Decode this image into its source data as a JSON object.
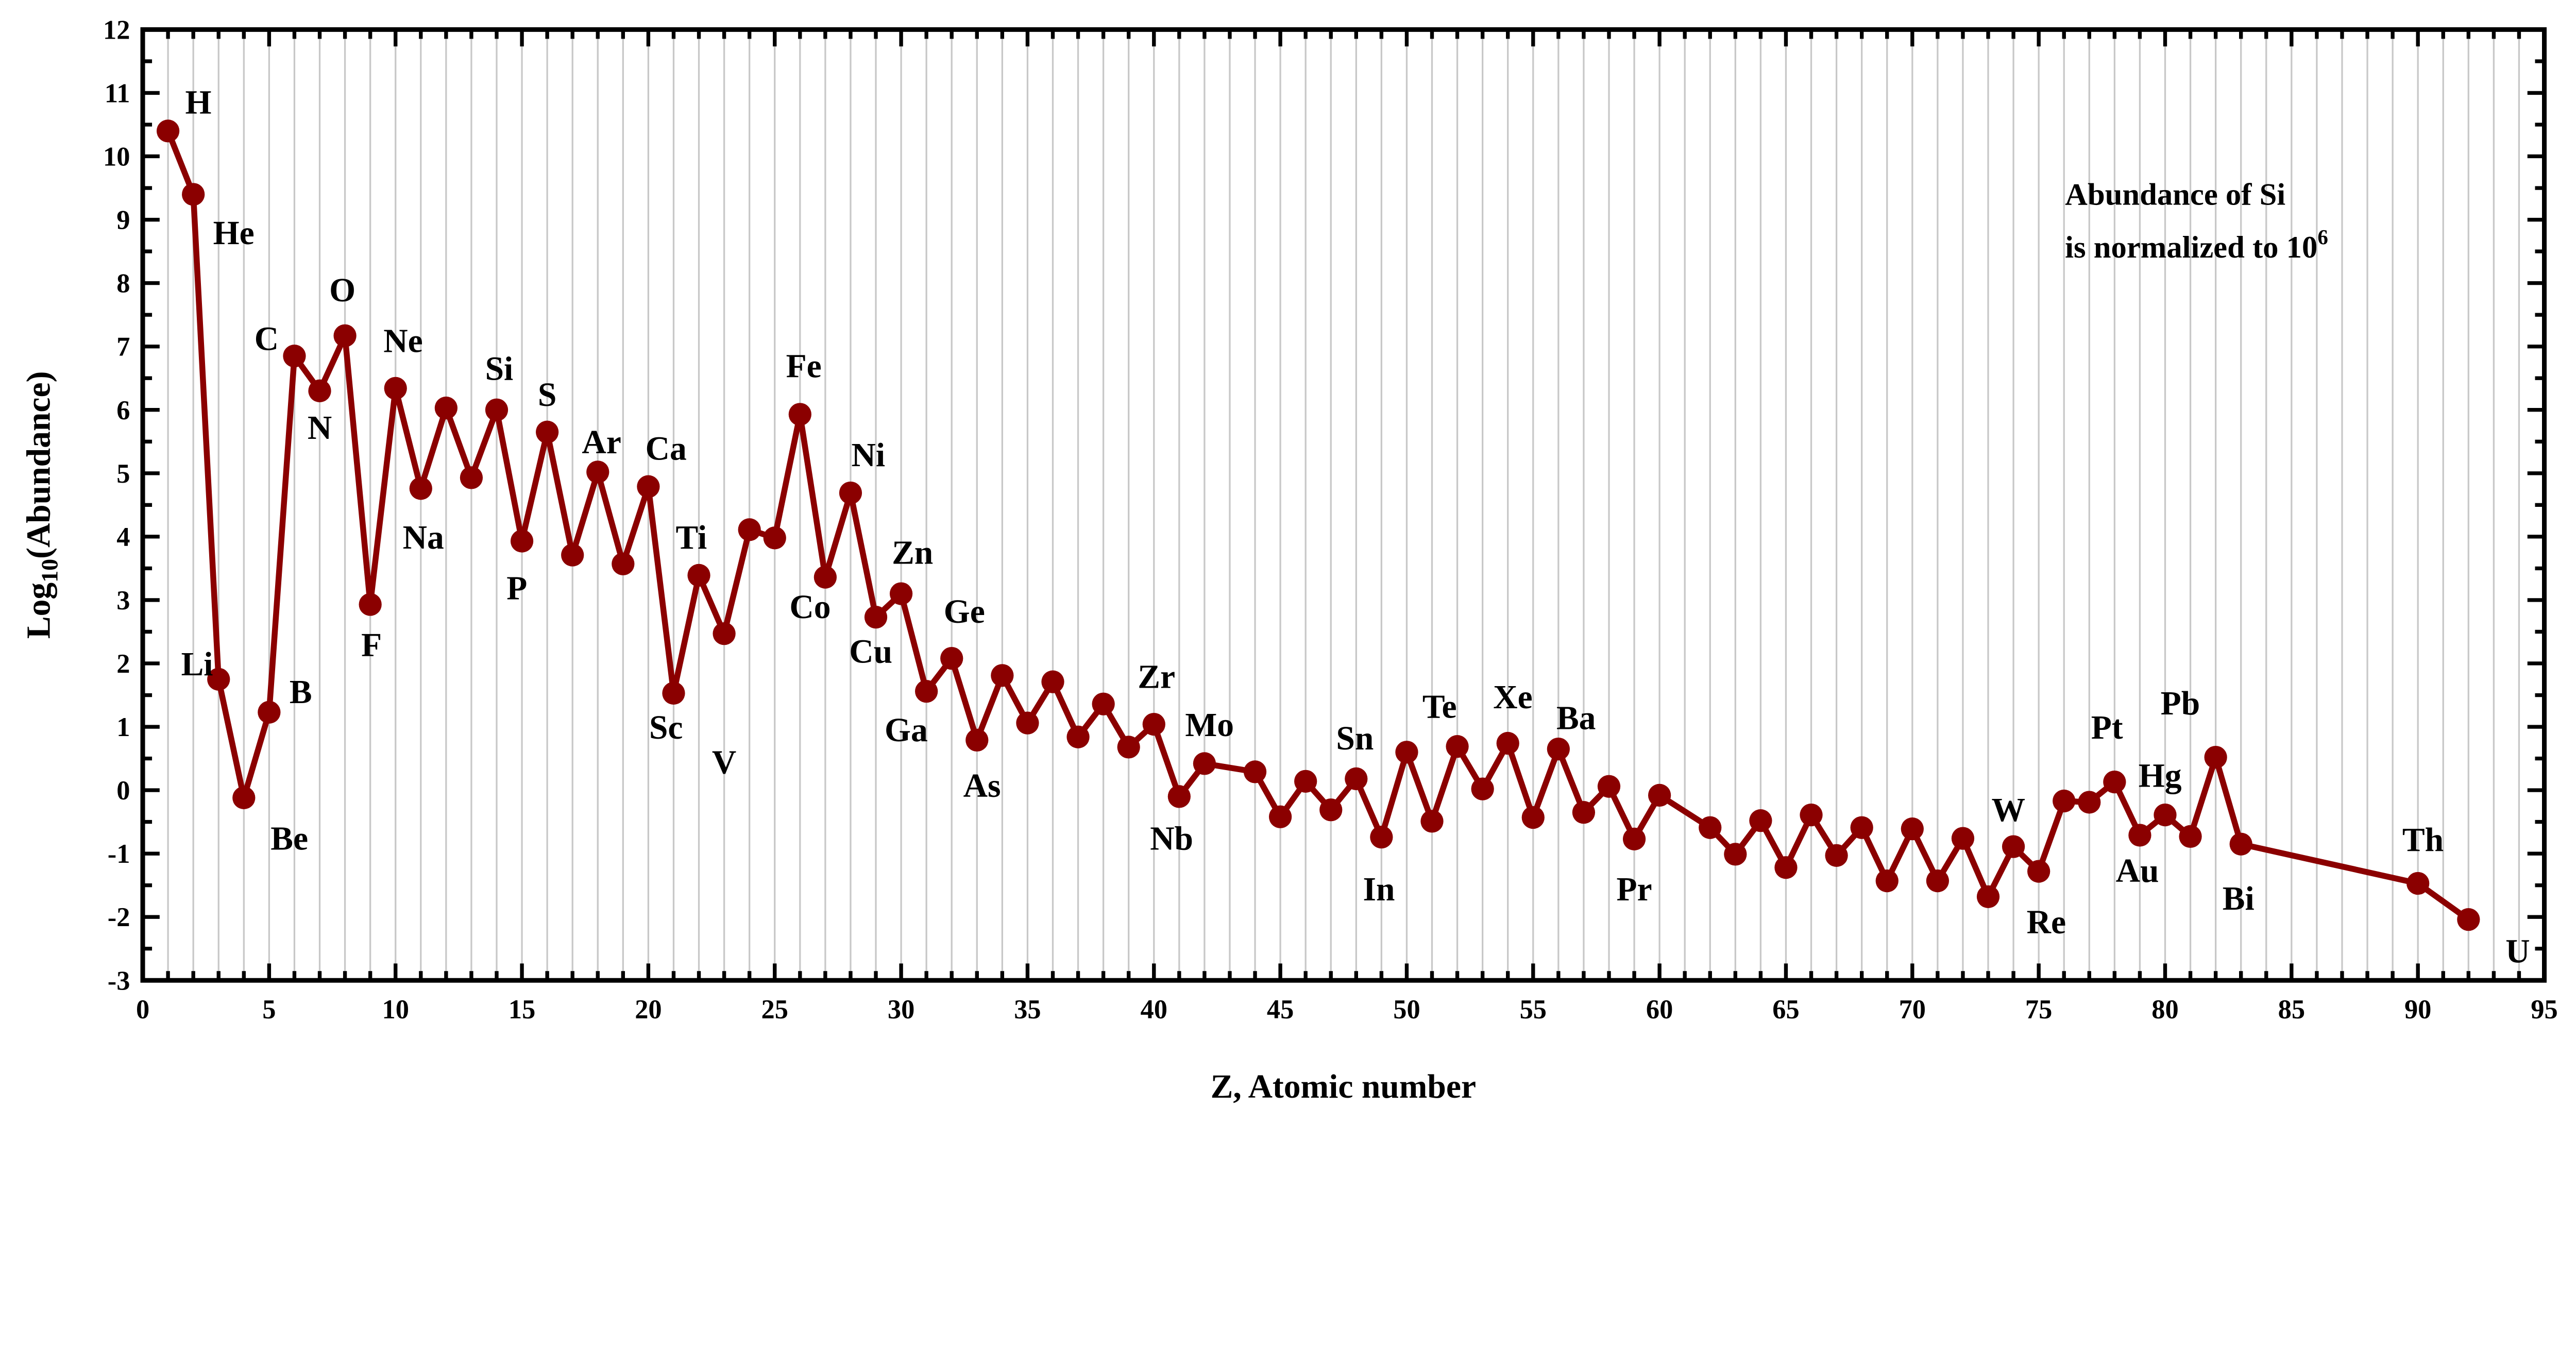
{
  "chart_data": {
    "type": "line",
    "title": "",
    "xlabel": "Z, Atomic number",
    "ylabel": {
      "main": "Log",
      "sub": "10",
      "rest": "(Abundance)"
    },
    "xlim": [
      0,
      95
    ],
    "ylim": [
      -3,
      12
    ],
    "xticks": [
      "0",
      "5",
      "10",
      "15",
      "20",
      "25",
      "30",
      "35",
      "40",
      "45",
      "50",
      "55",
      "60",
      "65",
      "70",
      "75",
      "80",
      "85",
      "90",
      "95"
    ],
    "yticks": [
      "-3",
      "-2",
      "-1",
      "0",
      "1",
      "2",
      "3",
      "4",
      "5",
      "6",
      "7",
      "8",
      "9",
      "10",
      "11",
      "12"
    ],
    "grid": "vertical lines at every integer Z",
    "line_color": "#8b0000",
    "annotation": {
      "line1": "Abundance of Si",
      "line2": "is normalized to 10",
      "sup": "6",
      "placement": "top-right"
    },
    "series": [
      {
        "name": "Abundance",
        "x": [
          1,
          2,
          3,
          4,
          5,
          6,
          7,
          8,
          9,
          10,
          11,
          12,
          13,
          14,
          15,
          16,
          17,
          18,
          19,
          20,
          21,
          22,
          23,
          24,
          25,
          26,
          27,
          28,
          29,
          30,
          31,
          32,
          33,
          34,
          35,
          36,
          37,
          38,
          39,
          40,
          41,
          42,
          44,
          45,
          46,
          47,
          48,
          49,
          50,
          51,
          52,
          53,
          54,
          55,
          56,
          57,
          58,
          59,
          60,
          62,
          63,
          64,
          65,
          66,
          67,
          68,
          69,
          70,
          71,
          72,
          73,
          74,
          75,
          76,
          77,
          78,
          79,
          80,
          81,
          82,
          83,
          90,
          92
        ],
        "y": [
          10.4,
          9.4,
          1.75,
          -0.12,
          1.23,
          6.85,
          6.3,
          7.17,
          2.93,
          6.34,
          4.76,
          6.03,
          4.93,
          6.0,
          3.93,
          5.65,
          3.71,
          5.02,
          3.57,
          4.79,
          1.53,
          3.39,
          2.47,
          4.11,
          3.98,
          5.93,
          3.36,
          4.69,
          2.73,
          3.1,
          1.56,
          2.08,
          0.79,
          1.81,
          1.06,
          1.71,
          0.84,
          1.36,
          0.68,
          1.04,
          -0.1,
          0.42,
          0.29,
          -0.42,
          0.14,
          -0.31,
          0.18,
          -0.74,
          0.6,
          -0.49,
          0.69,
          0.02,
          0.74,
          -0.43,
          0.65,
          -0.35,
          0.06,
          -0.77,
          -0.08,
          -0.59,
          -1.01,
          -0.48,
          -1.22,
          -0.39,
          -1.03,
          -0.59,
          -1.43,
          -0.61,
          -1.43,
          -0.76,
          -1.68,
          -0.89,
          -1.28,
          -0.17,
          -0.19,
          0.13,
          -0.71,
          -0.39,
          -0.73,
          0.52,
          -0.85,
          -1.47,
          -2.04
        ]
      }
    ],
    "point_labels": [
      {
        "text": "H",
        "x": 2.2,
        "y": 10.86
      },
      {
        "text": "He",
        "x": 3.6,
        "y": 8.8
      },
      {
        "text": "Li",
        "x": 2.15,
        "y": 2.0
      },
      {
        "text": "Be",
        "x": 5.8,
        "y": -0.75
      },
      {
        "text": "B",
        "x": 6.25,
        "y": 1.56
      },
      {
        "text": "C",
        "x": 4.9,
        "y": 7.13
      },
      {
        "text": "N",
        "x": 7.0,
        "y": 5.73
      },
      {
        "text": "O",
        "x": 7.9,
        "y": 7.9
      },
      {
        "text": "Ne",
        "x": 10.3,
        "y": 7.1
      },
      {
        "text": "Na",
        "x": 11.1,
        "y": 4.0
      },
      {
        "text": "F",
        "x": 9.05,
        "y": 2.3
      },
      {
        "text": "Si",
        "x": 14.1,
        "y": 6.66
      },
      {
        "text": "S",
        "x": 16.0,
        "y": 6.25
      },
      {
        "text": "P",
        "x": 14.8,
        "y": 3.2
      },
      {
        "text": "Ar",
        "x": 18.15,
        "y": 5.5
      },
      {
        "text": "Ca",
        "x": 20.7,
        "y": 5.4
      },
      {
        "text": "Ti",
        "x": 21.7,
        "y": 4.0
      },
      {
        "text": "Sc",
        "x": 20.7,
        "y": 1.0
      },
      {
        "text": "V",
        "x": 23.0,
        "y": 0.45
      },
      {
        "text": "Fe",
        "x": 26.15,
        "y": 6.7
      },
      {
        "text": "Ni",
        "x": 28.7,
        "y": 5.3
      },
      {
        "text": "Co",
        "x": 26.4,
        "y": 2.9
      },
      {
        "text": "Zn",
        "x": 30.45,
        "y": 3.76
      },
      {
        "text": "Cu",
        "x": 28.8,
        "y": 2.2
      },
      {
        "text": "Ge",
        "x": 32.5,
        "y": 2.83
      },
      {
        "text": "Ga",
        "x": 30.2,
        "y": 0.96
      },
      {
        "text": "As",
        "x": 33.2,
        "y": 0.08
      },
      {
        "text": "Zr",
        "x": 40.1,
        "y": 1.8
      },
      {
        "text": "Mo",
        "x": 42.2,
        "y": 1.04
      },
      {
        "text": "Nb",
        "x": 40.7,
        "y": -0.75
      },
      {
        "text": "Sn",
        "x": 47.95,
        "y": 0.83
      },
      {
        "text": "In",
        "x": 48.9,
        "y": -1.55
      },
      {
        "text": "Te",
        "x": 51.3,
        "y": 1.33
      },
      {
        "text": "Xe",
        "x": 54.2,
        "y": 1.48
      },
      {
        "text": "Ba",
        "x": 56.7,
        "y": 1.15
      },
      {
        "text": "Pr",
        "x": 59.0,
        "y": -1.55
      },
      {
        "text": "W",
        "x": 73.8,
        "y": -0.3
      },
      {
        "text": "Re",
        "x": 75.3,
        "y": -2.07
      },
      {
        "text": "Pt",
        "x": 77.7,
        "y": 1.0
      },
      {
        "text": "Hg",
        "x": 79.8,
        "y": 0.24
      },
      {
        "text": "Au",
        "x": 78.9,
        "y": -1.26
      },
      {
        "text": "Pb",
        "x": 80.6,
        "y": 1.38
      },
      {
        "text": "Bi",
        "x": 82.9,
        "y": -1.7
      },
      {
        "text": "Th",
        "x": 90.2,
        "y": -0.77
      },
      {
        "text": "U",
        "x": 93.95,
        "y": -2.53
      }
    ]
  }
}
